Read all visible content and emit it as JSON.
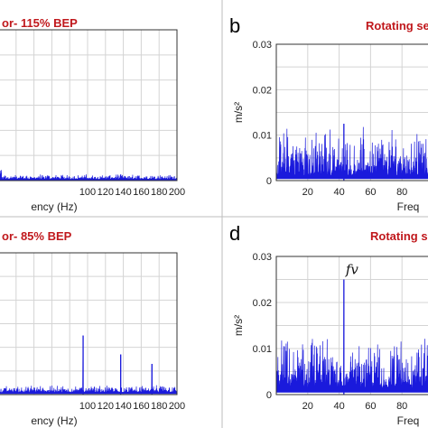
{
  "colors": {
    "signal": "#1a1adc",
    "title": "#c0181c"
  },
  "chart_data": [
    {
      "panel": "a",
      "type": "line",
      "title": "or- 115% BEP",
      "xlabel": "ency (Hz)",
      "ylabel": "",
      "letter": "",
      "xlim": [
        0,
        200
      ],
      "ylim": [
        0,
        0.03
      ],
      "x_ticks": [
        100,
        120,
        140,
        160,
        180,
        200
      ],
      "y_ticks": [],
      "grid": true,
      "noise": {
        "base": 0.0003,
        "amp": 0.0005
      },
      "peaks": [
        {
          "x": 137,
          "y": 0.0012
        }
      ],
      "annotation": ""
    },
    {
      "panel": "b",
      "type": "line",
      "title": "Rotating se",
      "xlabel": "Freq",
      "ylabel": "m/s²",
      "letter": "b",
      "xlim": [
        0,
        100
      ],
      "ylim": [
        0,
        0.03
      ],
      "x_ticks": [
        20,
        40,
        60,
        80
      ],
      "y_ticks": [
        0,
        0.01,
        0.02,
        0.03
      ],
      "y_tick_labels": [
        "0",
        "0.01",
        "0.02",
        "0.03"
      ],
      "grid": true,
      "noise": {
        "base": 0.0012,
        "amp": 0.0055
      },
      "peaks": [
        {
          "x": 43,
          "y": 0.0125
        }
      ],
      "annotation": ""
    },
    {
      "panel": "c",
      "type": "line",
      "title": "or- 85% BEP",
      "xlabel": "ency (Hz)",
      "ylabel": "",
      "letter": "",
      "xlim": [
        0,
        200
      ],
      "ylim": [
        0,
        0.03
      ],
      "x_ticks": [
        100,
        120,
        140,
        160,
        180,
        200
      ],
      "y_ticks": [],
      "grid": true,
      "noise": {
        "base": 0.0005,
        "amp": 0.0008
      },
      "peaks": [
        {
          "x": 95,
          "y": 0.0125
        },
        {
          "x": 137,
          "y": 0.0085
        },
        {
          "x": 172,
          "y": 0.0065
        }
      ],
      "annotation": ""
    },
    {
      "panel": "d",
      "type": "line",
      "title": "Rotating se",
      "xlabel": "Freq",
      "ylabel": "m/s²",
      "letter": "d",
      "xlim": [
        0,
        100
      ],
      "ylim": [
        0,
        0.03
      ],
      "x_ticks": [
        20,
        40,
        60,
        80
      ],
      "y_ticks": [
        0,
        0.01,
        0.02,
        0.03
      ],
      "y_tick_labels": [
        "0",
        "0.01",
        "0.02",
        "0.03"
      ],
      "grid": true,
      "noise": {
        "base": 0.0015,
        "amp": 0.006
      },
      "peaks": [
        {
          "x": 43,
          "y": 0.025
        }
      ],
      "annotation": "fv"
    }
  ]
}
